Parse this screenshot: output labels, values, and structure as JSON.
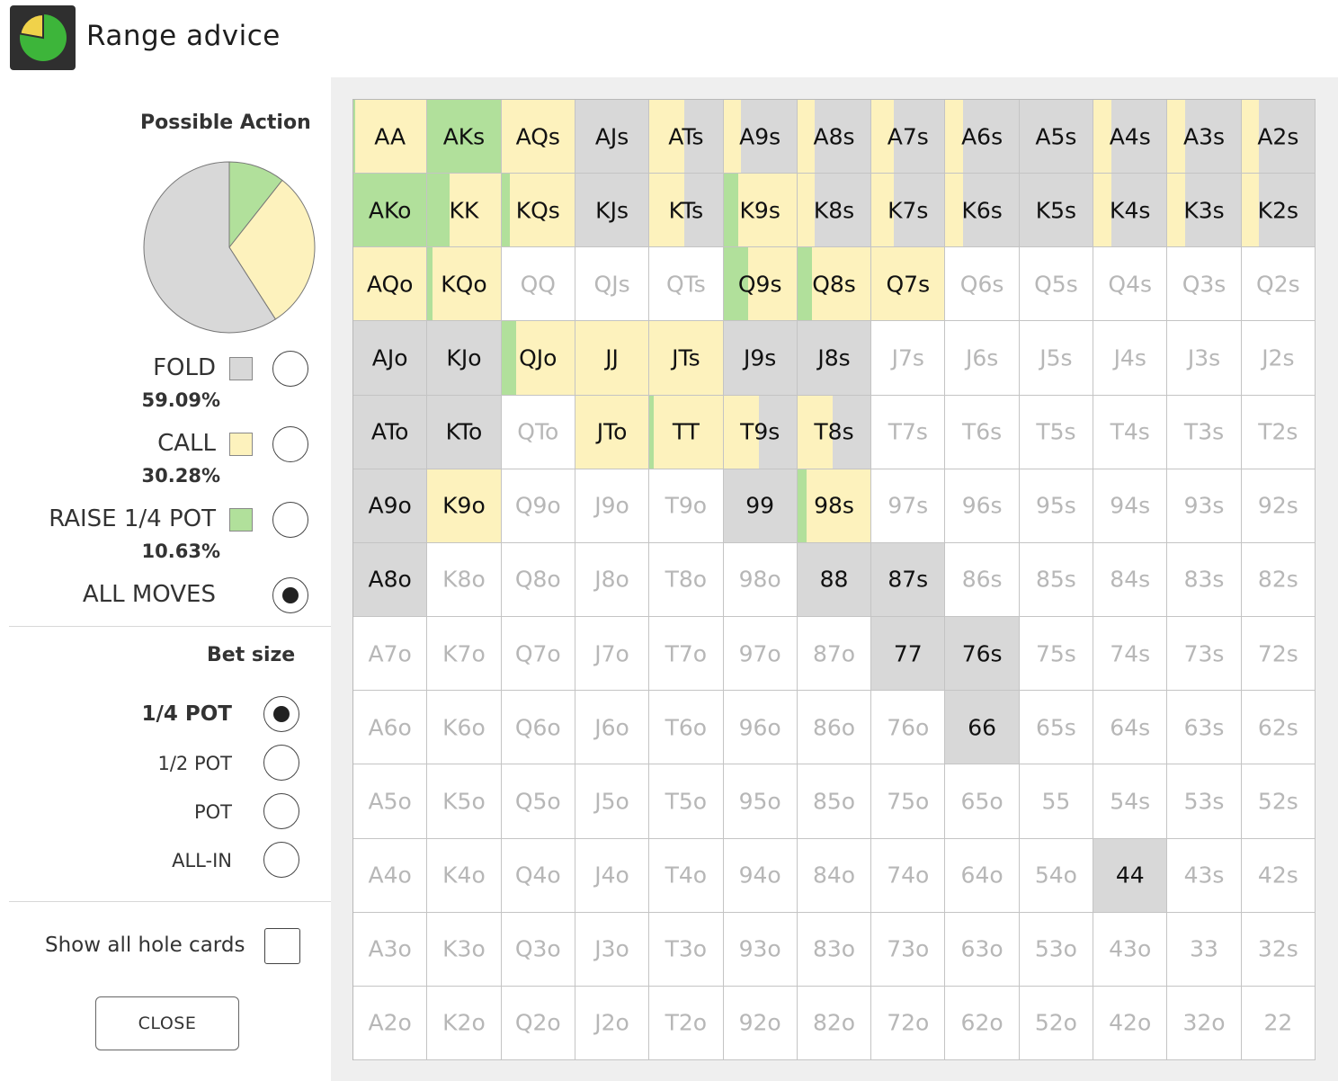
{
  "window": {
    "title": "Range advice"
  },
  "colors": {
    "fold": "#d8d8d8",
    "call": "#fdf2bd",
    "raise": "#b1e09b",
    "empty": "#ffffff"
  },
  "sidebar": {
    "possible_action_title": "Possible Action",
    "pie": {
      "fold": 59.09,
      "call": 30.28,
      "raise": 10.63
    },
    "actions": [
      {
        "label": "FOLD",
        "percent": "59.09%",
        "color": "#d8d8d8",
        "selected": false
      },
      {
        "label": "CALL",
        "percent": "30.28%",
        "color": "#fdf2bd",
        "selected": false
      },
      {
        "label": "RAISE 1/4 POT",
        "percent": "10.63%",
        "color": "#b1e09b",
        "selected": false
      },
      {
        "label": "ALL MOVES",
        "percent": "",
        "color": "",
        "selected": true
      }
    ],
    "bet_size_title": "Bet size",
    "bet_sizes": [
      {
        "label": "1/4 POT",
        "selected": true
      },
      {
        "label": "1/2 POT",
        "selected": false
      },
      {
        "label": "POT",
        "selected": false
      },
      {
        "label": "ALL-IN",
        "selected": false
      }
    ],
    "show_all_label": "Show all hole cards",
    "show_all_checked": false,
    "close_label": "CLOSE"
  },
  "grid": {
    "ranks": [
      "A",
      "K",
      "Q",
      "J",
      "T",
      "9",
      "8",
      "7",
      "6",
      "5",
      "4",
      "3",
      "2"
    ],
    "in_range": [
      "AA",
      "AKs",
      "AQs",
      "AJs",
      "ATs",
      "A9s",
      "A8s",
      "A7s",
      "A6s",
      "A5s",
      "A4s",
      "A3s",
      "A2s",
      "AKo",
      "KK",
      "KQs",
      "KJs",
      "KTs",
      "K9s",
      "K8s",
      "K7s",
      "K6s",
      "K5s",
      "K4s",
      "K3s",
      "K2s",
      "AQo",
      "KQo",
      "Q9s",
      "Q8s",
      "Q7s",
      "AJo",
      "KJo",
      "QJo",
      "JJ",
      "JTs",
      "J9s",
      "J8s",
      "ATo",
      "KTo",
      "JTo",
      "TT",
      "T9s",
      "T8s",
      "A9o",
      "K9o",
      "99",
      "98s",
      "A8o",
      "88",
      "87s",
      "77",
      "76s",
      "66",
      "44"
    ],
    "mix": {
      "AA": {
        "raise": 3,
        "call": 97,
        "fold": 0
      },
      "AKs": {
        "raise": 100,
        "call": 0,
        "fold": 0
      },
      "AQs": {
        "raise": 0,
        "call": 100,
        "fold": 0
      },
      "AJs": {
        "raise": 0,
        "call": 0,
        "fold": 100
      },
      "ATs": {
        "raise": 0,
        "call": 48,
        "fold": 52
      },
      "A9s": {
        "raise": 0,
        "call": 24,
        "fold": 76
      },
      "A8s": {
        "raise": 0,
        "call": 24,
        "fold": 76
      },
      "A7s": {
        "raise": 0,
        "call": 30,
        "fold": 70
      },
      "A6s": {
        "raise": 0,
        "call": 24,
        "fold": 76
      },
      "A5s": {
        "raise": 0,
        "call": 0,
        "fold": 100
      },
      "A4s": {
        "raise": 0,
        "call": 24,
        "fold": 76
      },
      "A3s": {
        "raise": 0,
        "call": 24,
        "fold": 76
      },
      "A2s": {
        "raise": 0,
        "call": 24,
        "fold": 76
      },
      "AKo": {
        "raise": 100,
        "call": 0,
        "fold": 0
      },
      "KK": {
        "raise": 30,
        "call": 70,
        "fold": 0
      },
      "KQs": {
        "raise": 12,
        "call": 88,
        "fold": 0
      },
      "KJs": {
        "raise": 0,
        "call": 0,
        "fold": 100
      },
      "KTs": {
        "raise": 0,
        "call": 48,
        "fold": 52
      },
      "K9s": {
        "raise": 20,
        "call": 80,
        "fold": 0
      },
      "K8s": {
        "raise": 0,
        "call": 24,
        "fold": 76
      },
      "K7s": {
        "raise": 0,
        "call": 30,
        "fold": 70
      },
      "K6s": {
        "raise": 0,
        "call": 24,
        "fold": 76
      },
      "K5s": {
        "raise": 0,
        "call": 0,
        "fold": 100
      },
      "K4s": {
        "raise": 0,
        "call": 24,
        "fold": 76
      },
      "K3s": {
        "raise": 0,
        "call": 24,
        "fold": 76
      },
      "K2s": {
        "raise": 0,
        "call": 24,
        "fold": 76
      },
      "AQo": {
        "raise": 0,
        "call": 100,
        "fold": 0
      },
      "KQo": {
        "raise": 7,
        "call": 93,
        "fold": 0
      },
      "Q9s": {
        "raise": 34,
        "call": 66,
        "fold": 0
      },
      "Q8s": {
        "raise": 20,
        "call": 80,
        "fold": 0
      },
      "Q7s": {
        "raise": 0,
        "call": 100,
        "fold": 0
      },
      "AJo": {
        "raise": 0,
        "call": 0,
        "fold": 100
      },
      "KJo": {
        "raise": 0,
        "call": 0,
        "fold": 100
      },
      "QJo": {
        "raise": 20,
        "call": 80,
        "fold": 0
      },
      "JJ": {
        "raise": 0,
        "call": 100,
        "fold": 0
      },
      "JTs": {
        "raise": 0,
        "call": 100,
        "fold": 0
      },
      "J9s": {
        "raise": 0,
        "call": 0,
        "fold": 100
      },
      "J8s": {
        "raise": 0,
        "call": 0,
        "fold": 100
      },
      "ATo": {
        "raise": 0,
        "call": 0,
        "fold": 100
      },
      "KTo": {
        "raise": 0,
        "call": 0,
        "fold": 100
      },
      "JTo": {
        "raise": 0,
        "call": 100,
        "fold": 0
      },
      "TT": {
        "raise": 6,
        "call": 94,
        "fold": 0
      },
      "T9s": {
        "raise": 0,
        "call": 48,
        "fold": 52
      },
      "T8s": {
        "raise": 0,
        "call": 48,
        "fold": 52
      },
      "A9o": {
        "raise": 0,
        "call": 0,
        "fold": 100
      },
      "K9o": {
        "raise": 0,
        "call": 100,
        "fold": 0
      },
      "99": {
        "raise": 0,
        "call": 0,
        "fold": 100
      },
      "98s": {
        "raise": 12,
        "call": 88,
        "fold": 0
      },
      "A8o": {
        "raise": 0,
        "call": 0,
        "fold": 100
      },
      "88": {
        "raise": 0,
        "call": 0,
        "fold": 100
      },
      "87s": {
        "raise": 0,
        "call": 0,
        "fold": 100
      },
      "77": {
        "raise": 0,
        "call": 0,
        "fold": 100
      },
      "76s": {
        "raise": 0,
        "call": 0,
        "fold": 100
      },
      "66": {
        "raise": 0,
        "call": 0,
        "fold": 100
      },
      "44": {
        "raise": 0,
        "call": 0,
        "fold": 100
      }
    }
  }
}
